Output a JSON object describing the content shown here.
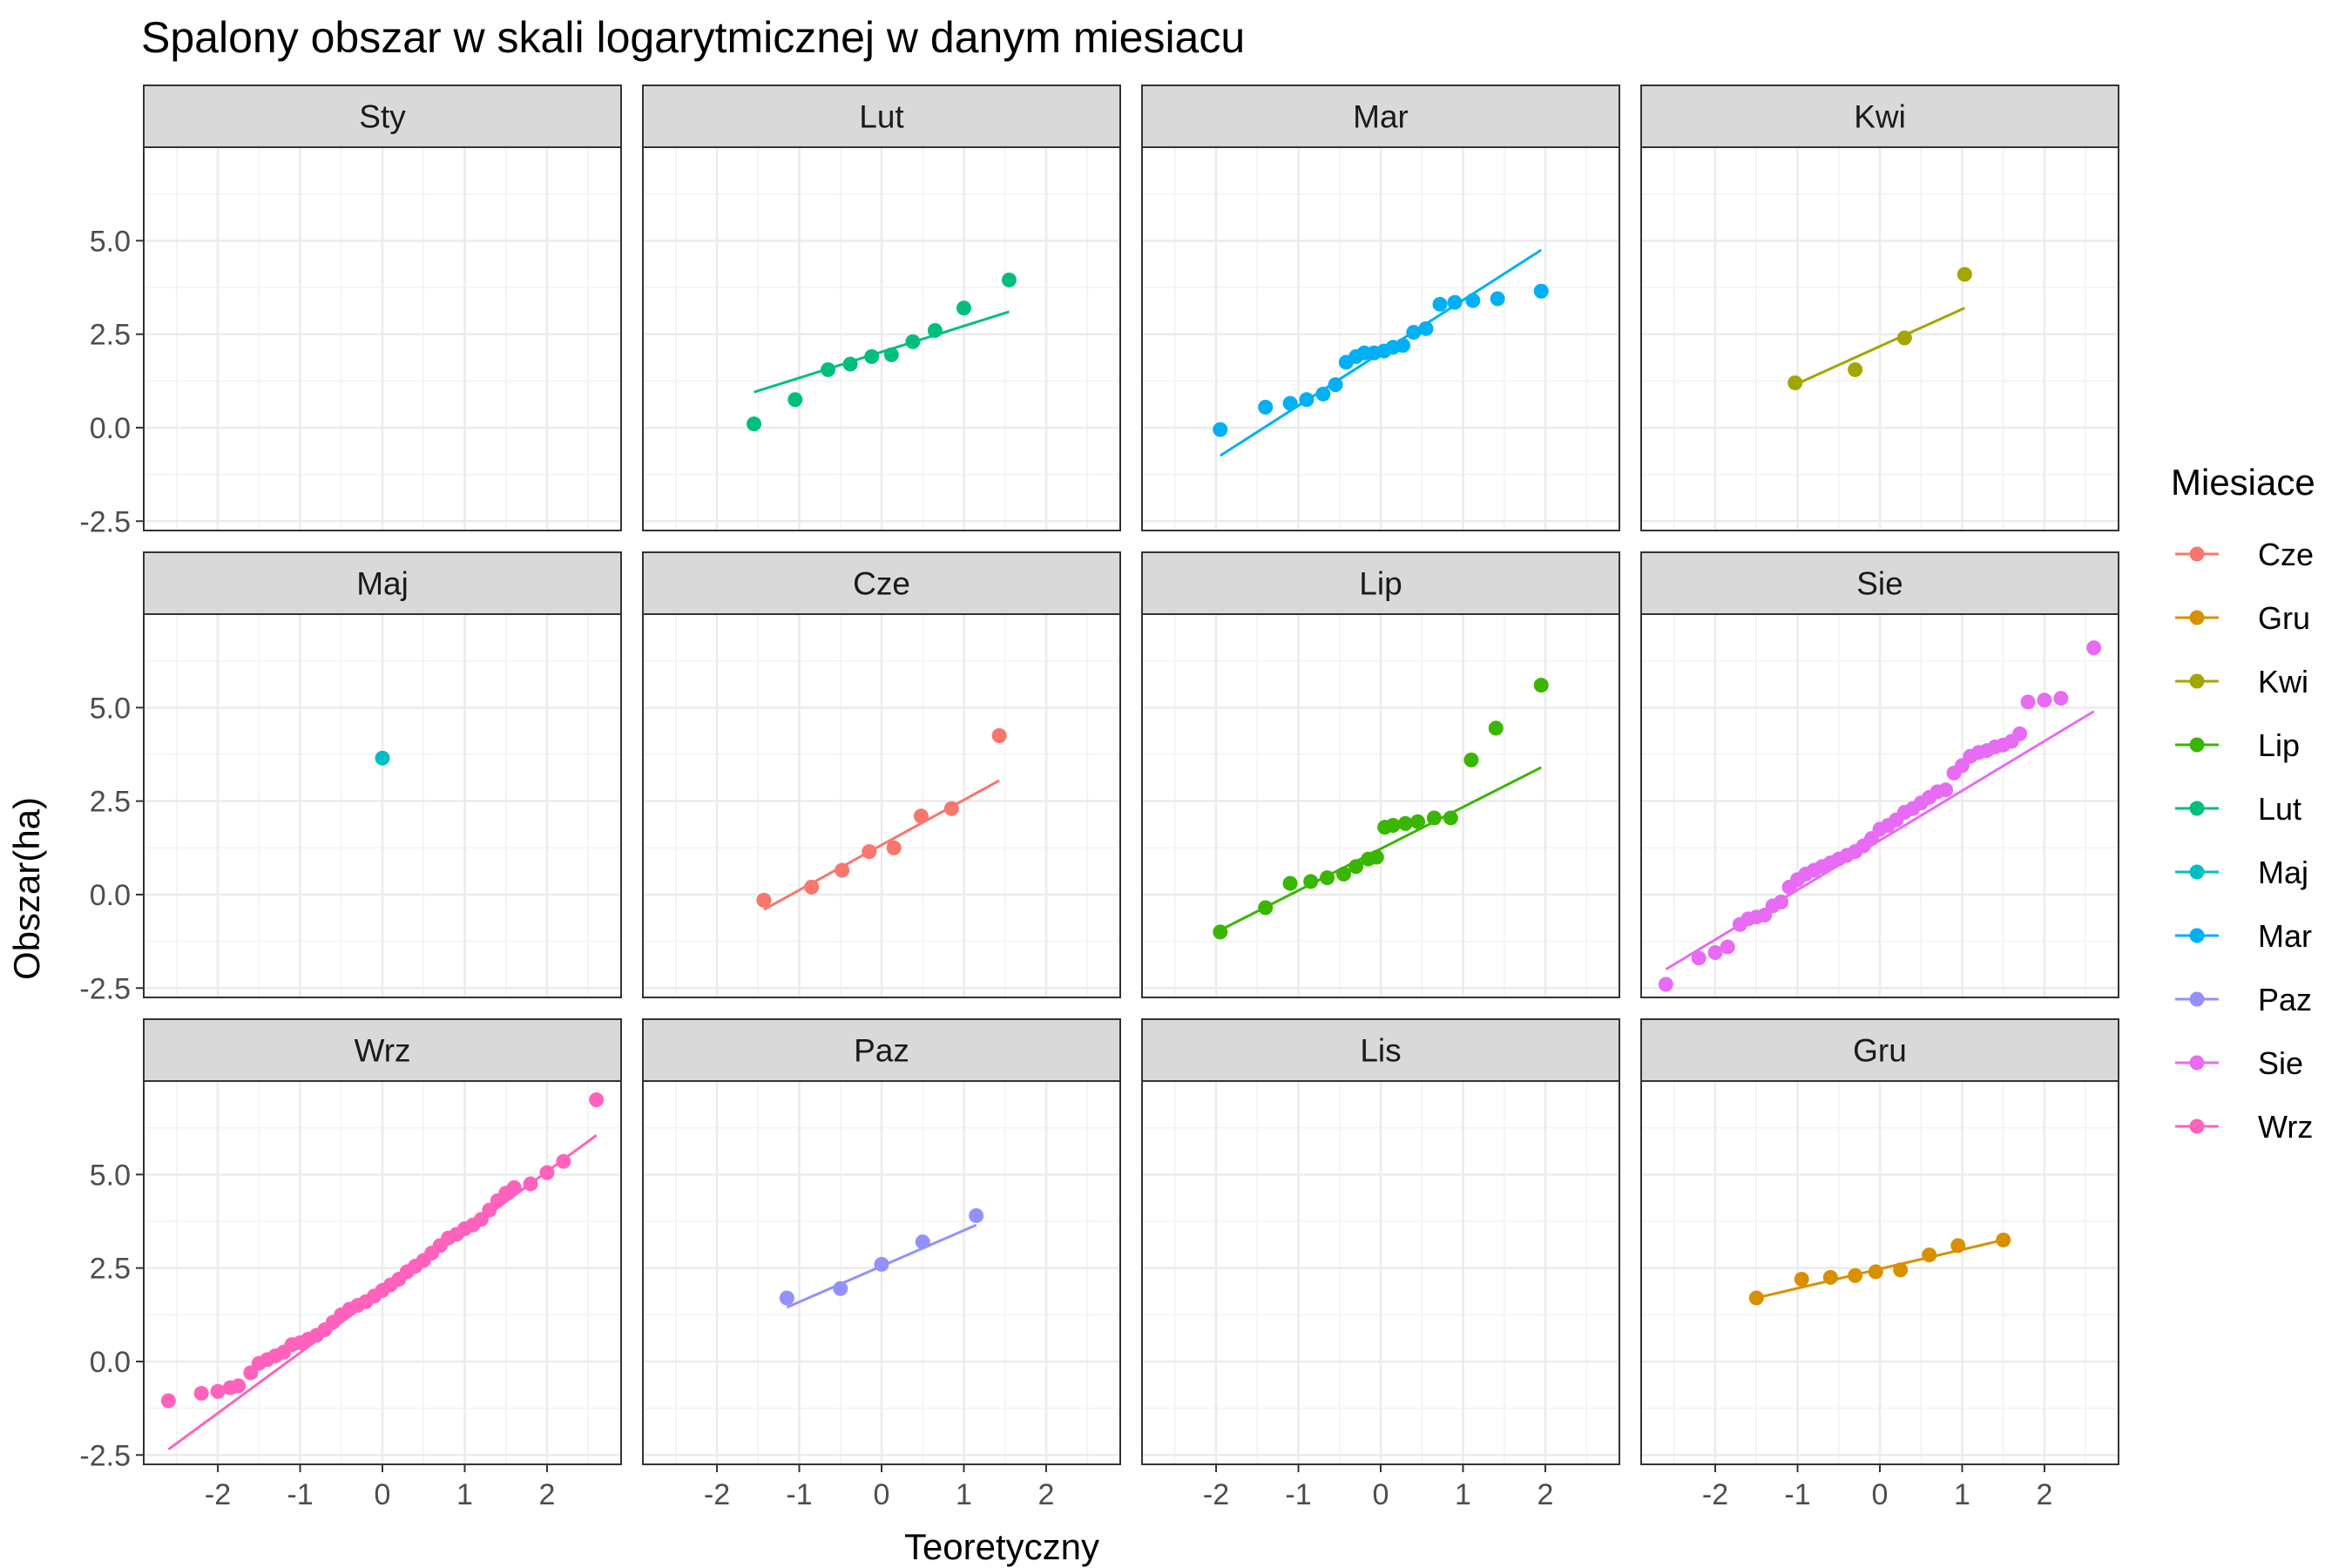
{
  "chart_data": {
    "type": "scatter",
    "title": "Spalony obszar w skali logarytmicznej w danym miesiacu",
    "xlabel": "Teoretyczny",
    "ylabel": "Obszar(ha)",
    "xlim": [
      -2.9,
      2.9
    ],
    "ylim": [
      -2.75,
      7.5
    ],
    "x_ticks": [
      -2,
      -1,
      0,
      1,
      2
    ],
    "x_tick_labels": [
      "-2",
      "-1",
      "0",
      "1",
      "2"
    ],
    "y_ticks": [
      -2.5,
      0,
      2.5,
      5
    ],
    "y_tick_labels": [
      "-2.5",
      "0.0",
      "2.5",
      "5.0"
    ],
    "grid": true,
    "legend": {
      "title": "Miesiace",
      "position": "right",
      "entries": [
        {
          "label": "Cze",
          "color": "#F8766D"
        },
        {
          "label": "Gru",
          "color": "#D89000"
        },
        {
          "label": "Kwi",
          "color": "#A3A500"
        },
        {
          "label": "Lip",
          "color": "#39B600"
        },
        {
          "label": "Lut",
          "color": "#00BF7D"
        },
        {
          "label": "Maj",
          "color": "#00BFC4"
        },
        {
          "label": "Mar",
          "color": "#00B0F6"
        },
        {
          "label": "Paz",
          "color": "#9590FF"
        },
        {
          "label": "Sie",
          "color": "#E76BF3"
        },
        {
          "label": "Wrz",
          "color": "#FF62BC"
        }
      ]
    },
    "panels": [
      {
        "label": "Sty",
        "color": "#F8766D",
        "x": [],
        "y": [],
        "line": null
      },
      {
        "label": "Lut",
        "color": "#00BF7D",
        "x": [
          -1.55,
          -1.05,
          -0.65,
          -0.38,
          -0.12,
          0.12,
          0.38,
          0.65,
          1.0,
          1.55
        ],
        "y": [
          0.1,
          0.75,
          1.55,
          1.7,
          1.9,
          1.95,
          2.3,
          2.6,
          3.2,
          3.95
        ],
        "line": [
          [
            -1.55,
            0.95
          ],
          [
            1.55,
            3.1
          ]
        ]
      },
      {
        "label": "Mar",
        "color": "#00B0F6",
        "x": [
          -1.95,
          -1.4,
          -1.1,
          -0.9,
          -0.7,
          -0.55,
          -0.42,
          -0.3,
          -0.2,
          -0.08,
          0.04,
          0.15,
          0.27,
          0.4,
          0.55,
          0.72,
          0.9,
          1.12,
          1.42,
          1.95
        ],
        "y": [
          -0.05,
          0.55,
          0.65,
          0.75,
          0.9,
          1.15,
          1.75,
          1.9,
          2.0,
          2.0,
          2.05,
          2.15,
          2.2,
          2.55,
          2.65,
          3.3,
          3.35,
          3.4,
          3.45,
          3.65
        ],
        "line": [
          [
            -1.95,
            -0.75
          ],
          [
            1.95,
            4.75
          ]
        ]
      },
      {
        "label": "Kwi",
        "color": "#A3A500",
        "x": [
          -1.03,
          -0.3,
          0.3,
          1.03
        ],
        "y": [
          1.2,
          1.55,
          2.4,
          4.1
        ],
        "line": [
          [
            -1.03,
            1.15
          ],
          [
            1.03,
            3.2
          ]
        ]
      },
      {
        "label": "Maj",
        "color": "#00BFC4",
        "x": [
          0.0
        ],
        "y": [
          3.65
        ],
        "line": null
      },
      {
        "label": "Cze",
        "color": "#F8766D",
        "x": [
          -1.43,
          -0.85,
          -0.48,
          -0.15,
          0.15,
          0.48,
          0.85,
          1.43
        ],
        "y": [
          -0.15,
          0.2,
          0.65,
          1.15,
          1.25,
          2.1,
          2.3,
          4.25
        ],
        "line": [
          [
            -1.43,
            -0.4
          ],
          [
            1.43,
            3.05
          ]
        ]
      },
      {
        "label": "Lip",
        "color": "#39B600",
        "x": [
          -1.95,
          -1.4,
          -1.1,
          -0.85,
          -0.65,
          -0.45,
          -0.3,
          -0.15,
          -0.05,
          0.05,
          0.15,
          0.3,
          0.45,
          0.65,
          0.85,
          1.1,
          1.4,
          1.95
        ],
        "y": [
          -1.0,
          -0.35,
          0.3,
          0.35,
          0.45,
          0.55,
          0.75,
          0.95,
          1.0,
          1.8,
          1.85,
          1.9,
          1.95,
          2.05,
          2.05,
          3.6,
          4.45,
          5.6
        ],
        "line": [
          [
            -1.95,
            -0.95
          ],
          [
            1.95,
            3.4
          ]
        ]
      },
      {
        "label": "Sie",
        "color": "#E76BF3",
        "x": [
          -2.6,
          -2.2,
          -2.0,
          -1.85,
          -1.7,
          -1.6,
          -1.5,
          -1.4,
          -1.3,
          -1.2,
          -1.1,
          -1.0,
          -0.9,
          -0.8,
          -0.7,
          -0.6,
          -0.5,
          -0.4,
          -0.3,
          -0.2,
          -0.1,
          0.0,
          0.1,
          0.2,
          0.3,
          0.4,
          0.5,
          0.6,
          0.7,
          0.8,
          0.9,
          1.0,
          1.1,
          1.2,
          1.3,
          1.4,
          1.5,
          1.6,
          1.7,
          1.8,
          2.0,
          2.2,
          2.6
        ],
        "y": [
          -2.4,
          -1.7,
          -1.55,
          -1.4,
          -0.8,
          -0.65,
          -0.6,
          -0.55,
          -0.3,
          -0.2,
          0.2,
          0.4,
          0.55,
          0.65,
          0.75,
          0.85,
          0.95,
          1.05,
          1.15,
          1.3,
          1.5,
          1.75,
          1.85,
          2.0,
          2.2,
          2.3,
          2.45,
          2.6,
          2.75,
          2.8,
          3.25,
          3.45,
          3.7,
          3.8,
          3.85,
          3.95,
          4.0,
          4.1,
          4.3,
          5.15,
          5.2,
          5.25,
          6.6
        ],
        "line": [
          [
            -2.6,
            -2.0
          ],
          [
            2.6,
            4.9
          ]
        ]
      },
      {
        "label": "Wrz",
        "color": "#FF62BC",
        "x": [
          -2.6,
          -2.2,
          -2.0,
          -1.85,
          -1.75,
          -1.6,
          -1.5,
          -1.4,
          -1.3,
          -1.2,
          -1.1,
          -1.0,
          -0.9,
          -0.8,
          -0.7,
          -0.6,
          -0.5,
          -0.4,
          -0.3,
          -0.2,
          -0.1,
          0.0,
          0.1,
          0.2,
          0.3,
          0.4,
          0.5,
          0.6,
          0.7,
          0.8,
          0.9,
          1.0,
          1.1,
          1.2,
          1.3,
          1.4,
          1.5,
          1.6,
          1.8,
          2.0,
          2.2,
          2.6
        ],
        "y": [
          -1.05,
          -0.85,
          -0.8,
          -0.7,
          -0.65,
          -0.3,
          -0.05,
          0.05,
          0.15,
          0.25,
          0.45,
          0.5,
          0.6,
          0.7,
          0.85,
          1.05,
          1.25,
          1.4,
          1.5,
          1.6,
          1.75,
          1.9,
          2.05,
          2.2,
          2.4,
          2.55,
          2.7,
          2.9,
          3.1,
          3.3,
          3.4,
          3.55,
          3.65,
          3.8,
          4.05,
          4.3,
          4.5,
          4.65,
          4.75,
          5.05,
          5.35,
          7.0
        ],
        "line": [
          [
            -2.6,
            -2.35
          ],
          [
            2.6,
            6.05
          ]
        ]
      },
      {
        "label": "Paz",
        "color": "#9590FF",
        "x": [
          -1.15,
          -0.5,
          0.0,
          0.5,
          1.15
        ],
        "y": [
          1.7,
          1.95,
          2.6,
          3.2,
          3.9
        ],
        "line": [
          [
            -1.15,
            1.45
          ],
          [
            1.15,
            3.65
          ]
        ]
      },
      {
        "label": "Lis",
        "color": "#F8766D",
        "x": [],
        "y": [],
        "line": null
      },
      {
        "label": "Gru",
        "color": "#D89000",
        "x": [
          -1.5,
          -0.95,
          -0.6,
          -0.3,
          -0.05,
          0.25,
          0.6,
          0.95,
          1.5
        ],
        "y": [
          1.7,
          2.2,
          2.25,
          2.3,
          2.4,
          2.45,
          2.85,
          3.1,
          3.25
        ],
        "line": [
          [
            -1.5,
            1.7
          ],
          [
            1.5,
            3.25
          ]
        ]
      }
    ]
  }
}
